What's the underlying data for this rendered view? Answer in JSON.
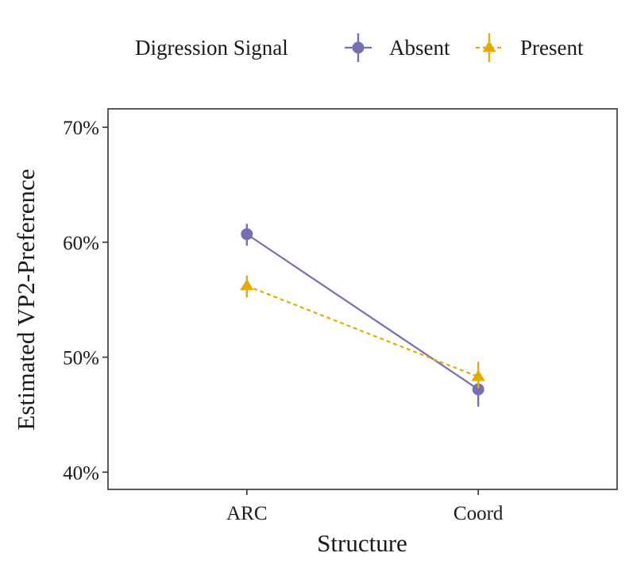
{
  "chart_data": {
    "type": "line",
    "title": "",
    "xlabel": "Structure",
    "ylabel": "Estimated VP2-Preference",
    "categories": [
      "ARC",
      "Coord"
    ],
    "ylim": [
      0.385,
      0.716
    ],
    "yticks": [
      0.4,
      0.5,
      0.6,
      0.7
    ],
    "ytick_labels": [
      "40%",
      "50%",
      "60%",
      "70%"
    ],
    "grid": false,
    "legend": {
      "title": "Digression Signal",
      "position": "top"
    },
    "series": [
      {
        "name": "Absent",
        "color": "#7570b3",
        "marker": "circle",
        "linestyle": "solid",
        "values": [
          0.607,
          0.472
        ],
        "error_low": [
          0.597,
          0.457
        ],
        "error_high": [
          0.616,
          0.483
        ]
      },
      {
        "name": "Present",
        "color": "#e6ab02",
        "marker": "triangle",
        "linestyle": "dashed",
        "values": [
          0.562,
          0.483
        ],
        "error_low": [
          0.552,
          0.473
        ],
        "error_high": [
          0.571,
          0.496
        ]
      }
    ]
  }
}
